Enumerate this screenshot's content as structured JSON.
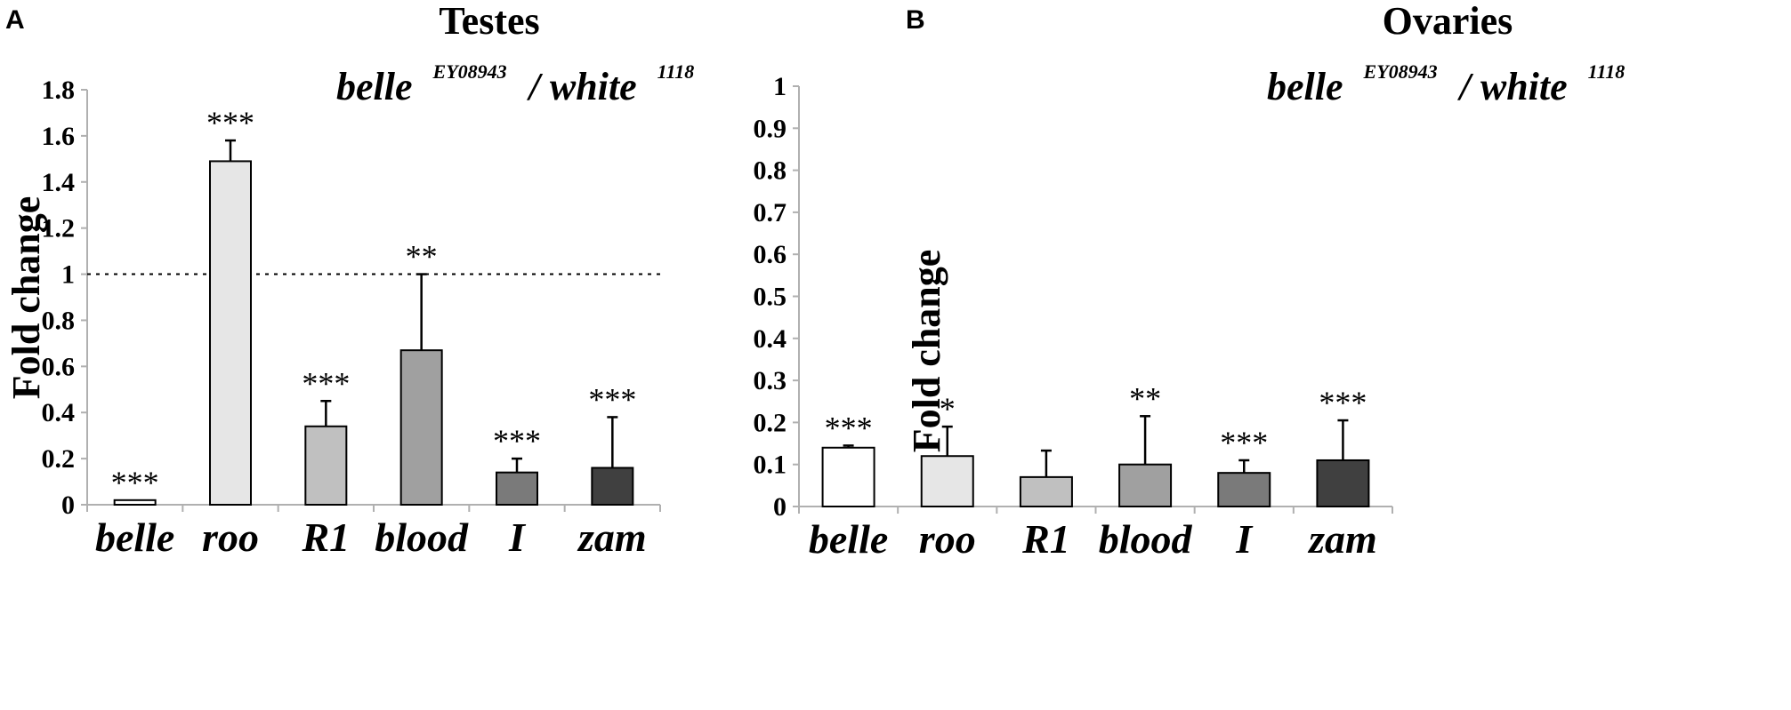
{
  "panel_a": {
    "letter": "A",
    "chart_title": "Testes",
    "genotype": {
      "gene": "belle",
      "allele": "EY08943",
      "separator": "/ white",
      "control_allele": "1118"
    },
    "ylabel": "Fold change",
    "yticks": [
      "0",
      "0.2",
      "0.4",
      "0.6",
      "0.8",
      "1",
      "1.2",
      "1.4",
      "1.6",
      "1.8"
    ]
  },
  "panel_b": {
    "letter": "B",
    "chart_title": "Ovaries",
    "genotype": {
      "gene": "belle",
      "allele": "EY08943",
      "separator": "/ white",
      "control_allele": "1118"
    },
    "ylabel": "Fold change",
    "yticks": [
      "0",
      "0.1",
      "0.2",
      "0.3",
      "0.4",
      "0.5",
      "0.6",
      "0.7",
      "0.8",
      "0.9",
      "1"
    ]
  },
  "colors": {
    "belle": "#ffffff",
    "roo": "#e6e6e6",
    "R1": "#c0c0c0",
    "blood": "#a0a0a0",
    "I": "#7a7a7a",
    "zam": "#404040",
    "axis": "#b0b0b0"
  },
  "chart_data": [
    {
      "type": "bar",
      "title": "Testes",
      "subtitle": "belle EY08943 / white 1118",
      "xlabel": "",
      "ylabel": "Fold change",
      "ylim": [
        0,
        1.8
      ],
      "reference_line": 1,
      "categories": [
        "belle",
        "roo",
        "R1",
        "blood",
        "I",
        "zam"
      ],
      "values": [
        0.02,
        1.49,
        0.34,
        0.67,
        0.14,
        0.16
      ],
      "error_upper": [
        0.0,
        0.09,
        0.11,
        0.33,
        0.06,
        0.22
      ],
      "significance": [
        "***",
        "***",
        "***",
        "**",
        "***",
        "***"
      ]
    },
    {
      "type": "bar",
      "title": "Ovaries",
      "subtitle": "belle EY08943 / white 1118",
      "xlabel": "",
      "ylabel": "Fold change",
      "ylim": [
        0,
        1
      ],
      "categories": [
        "belle",
        "roo",
        "R1",
        "blood",
        "I",
        "zam"
      ],
      "values": [
        0.14,
        0.12,
        0.07,
        0.1,
        0.08,
        0.11
      ],
      "error_upper": [
        0.005,
        0.07,
        0.063,
        0.115,
        0.03,
        0.095
      ],
      "significance": [
        "***",
        "*",
        "",
        "**",
        "***",
        "***"
      ]
    }
  ]
}
